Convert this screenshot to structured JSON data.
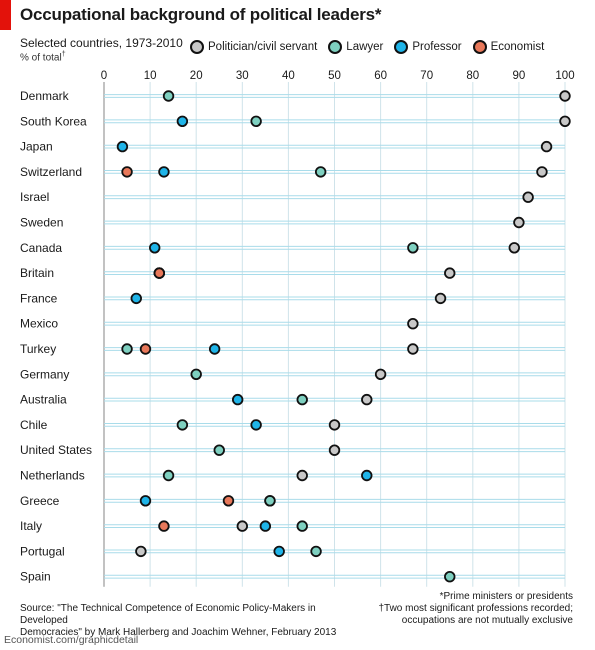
{
  "header": {
    "title": "Occupational background of political leaders*",
    "subtitle": "Selected countries, 1973-2010",
    "units": "% of total",
    "units_mark": "†"
  },
  "legend": [
    {
      "key": "politician",
      "label": "Politician/civil servant",
      "color": "#c8c8c8"
    },
    {
      "key": "lawyer",
      "label": "Lawyer",
      "color": "#7ed0c0"
    },
    {
      "key": "professor",
      "label": "Professor",
      "color": "#1fb4e8"
    },
    {
      "key": "economist",
      "label": "Economist",
      "color": "#e8785a"
    }
  ],
  "footer": {
    "source_line1": "Source: \"The Technical Competence of Economic Policy-Makers in Developed",
    "source_line2": "Democracies\" by Mark Hallerberg and Joachim Wehner, February 2013",
    "note1": "*Prime ministers or presidents",
    "note2": "†Two most significant professions recorded;",
    "note3": "occupations are not mutually exclusive",
    "brand": "Economist.com/graphicdetail"
  },
  "chart_data": {
    "type": "scatter",
    "title": "Occupational background of political leaders*",
    "subtitle": "Selected countries, 1973-2010",
    "ylabel": "% of total",
    "xlim": [
      0,
      100
    ],
    "xticks": [
      0,
      10,
      20,
      30,
      40,
      50,
      60,
      70,
      80,
      90,
      100
    ],
    "grid": false,
    "legend_position": "top",
    "categories": [
      "Denmark",
      "South Korea",
      "Japan",
      "Switzerland",
      "Israel",
      "Sweden",
      "Canada",
      "Britain",
      "France",
      "Mexico",
      "Turkey",
      "Germany",
      "Australia",
      "Chile",
      "United States",
      "Netherlands",
      "Greece",
      "Italy",
      "Portugal",
      "Spain"
    ],
    "series": [
      {
        "name": "Politician/civil servant",
        "key": "politician",
        "values": [
          100,
          100,
          96,
          95,
          92,
          90,
          89,
          75,
          73,
          67,
          67,
          60,
          57,
          50,
          50,
          43,
          36,
          30,
          8,
          null
        ]
      },
      {
        "name": "Lawyer",
        "key": "lawyer",
        "values": [
          14,
          33,
          null,
          47,
          null,
          null,
          67,
          12,
          null,
          null,
          5,
          20,
          43,
          17,
          25,
          14,
          36,
          43,
          46,
          75
        ]
      },
      {
        "name": "Professor",
        "key": "professor",
        "values": [
          null,
          17,
          4,
          13,
          null,
          null,
          11,
          12,
          7,
          null,
          24,
          null,
          29,
          33,
          null,
          57,
          9,
          35,
          38,
          null
        ]
      },
      {
        "name": "Economist",
        "key": "economist",
        "values": [
          null,
          null,
          null,
          5,
          null,
          null,
          null,
          12,
          null,
          null,
          9,
          null,
          null,
          null,
          null,
          null,
          27,
          13,
          null,
          null
        ]
      }
    ]
  }
}
